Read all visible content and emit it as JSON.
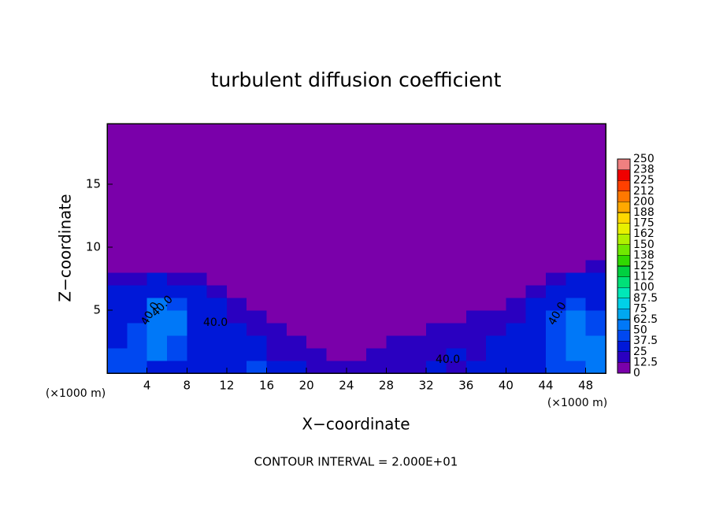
{
  "chart_data": {
    "type": "heatmap",
    "title": "turbulent diffusion coefficient",
    "x_label": "X−coordinate",
    "y_label": "Z−coordinate",
    "x_unit": "(×1000 m)",
    "x_unit_right": "(×1000 m)",
    "footnote": "CONTOUR INTERVAL = 2.000E+01",
    "contour_labels": [
      "40.0",
      "40.0",
      "40.0",
      "40.0",
      "40.0"
    ],
    "xlim": [
      0,
      50
    ],
    "ylim": [
      0,
      19.8
    ],
    "xticks": [
      4,
      8,
      12,
      16,
      20,
      24,
      28,
      32,
      36,
      40,
      44,
      48
    ],
    "yticks": [
      5,
      10,
      15
    ],
    "xbins": [
      0,
      2,
      4,
      6,
      8,
      10,
      12,
      14,
      16,
      18,
      20,
      22,
      24,
      26,
      28,
      30,
      32,
      34,
      36,
      38,
      40,
      42,
      44,
      46,
      48,
      50
    ],
    "ybins": [
      0,
      1,
      2,
      3,
      4,
      5,
      6,
      7,
      8,
      9,
      19.8
    ],
    "values": [
      [
        45,
        40,
        35,
        30,
        35,
        30,
        35,
        40,
        30,
        25,
        20,
        15,
        15,
        20,
        18,
        20,
        25,
        20,
        25,
        30,
        30,
        35,
        40,
        45,
        50
      ],
      [
        40,
        45,
        50,
        40,
        30,
        35,
        30,
        25,
        20,
        15,
        15,
        10,
        12,
        15,
        20,
        18,
        20,
        25,
        20,
        25,
        30,
        35,
        40,
        50,
        55
      ],
      [
        35,
        40,
        55,
        45,
        35,
        30,
        30,
        25,
        20,
        15,
        10,
        10,
        8,
        10,
        15,
        15,
        20,
        15,
        20,
        25,
        30,
        35,
        45,
        55,
        50
      ],
      [
        30,
        40,
        60,
        50,
        35,
        30,
        25,
        20,
        15,
        10,
        8,
        5,
        5,
        5,
        10,
        10,
        15,
        15,
        15,
        20,
        25,
        30,
        45,
        55,
        45
      ],
      [
        30,
        35,
        55,
        50,
        35,
        25,
        20,
        15,
        10,
        5,
        5,
        3,
        2,
        2,
        5,
        5,
        8,
        10,
        15,
        15,
        20,
        30,
        40,
        50,
        40
      ],
      [
        30,
        35,
        50,
        40,
        30,
        25,
        15,
        10,
        5,
        2,
        1,
        0,
        0,
        0,
        0,
        2,
        3,
        5,
        8,
        10,
        15,
        25,
        35,
        40,
        35
      ],
      [
        25,
        30,
        35,
        30,
        25,
        15,
        10,
        3,
        1,
        0,
        0,
        0,
        0,
        0,
        0,
        0,
        0,
        1,
        2,
        5,
        10,
        20,
        25,
        35,
        30
      ],
      [
        20,
        20,
        25,
        20,
        15,
        10,
        5,
        1,
        0,
        0,
        0,
        0,
        0,
        0,
        0,
        0,
        0,
        0,
        0,
        0,
        2,
        8,
        15,
        25,
        30
      ],
      [
        5,
        3,
        2,
        1,
        0,
        0,
        0,
        0,
        0,
        0,
        0,
        0,
        0,
        0,
        0,
        0,
        0,
        0,
        0,
        0,
        0,
        2,
        5,
        10,
        20
      ],
      [
        0,
        0,
        0,
        0,
        0,
        0,
        0,
        0,
        0,
        0,
        0,
        0,
        0,
        0,
        0,
        0,
        0,
        0,
        0,
        0,
        0,
        0,
        0,
        0,
        0
      ]
    ],
    "colorbar_ticks": [
      0,
      12.5,
      25,
      37.5,
      50,
      62.5,
      75,
      87.5,
      100,
      {
        "value": 112.5,
        "label": "112"
      },
      125,
      {
        "value": 137.5,
        "label": "138"
      },
      150,
      {
        "value": 162.5,
        "label": "162"
      },
      175,
      {
        "value": 187.5,
        "label": "188"
      },
      200,
      {
        "value": 212.5,
        "label": "212"
      },
      225,
      {
        "value": 237.5,
        "label": "238"
      },
      250
    ],
    "colors": [
      "#7a00aa",
      "#2a00c0",
      "#0018d8",
      "#0048f0",
      "#0078f8",
      "#00a8f0",
      "#00d0e8",
      "#00e8b8",
      "#00e078",
      "#00d040",
      "#30d800",
      "#70e800",
      "#b0f000",
      "#e8f000",
      "#ffd800",
      "#ffa800",
      "#ff7800",
      "#ff4000",
      "#f00000",
      "#f08080"
    ]
  }
}
